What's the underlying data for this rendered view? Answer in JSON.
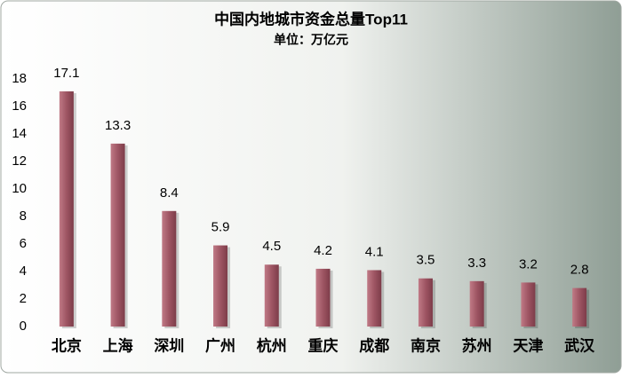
{
  "chart_data": {
    "type": "bar",
    "title": "中国内地城市资金总量Top11",
    "subtitle": "单位：万亿元",
    "categories": [
      "北京",
      "上海",
      "深圳",
      "广州",
      "杭州",
      "重庆",
      "成都",
      "南京",
      "苏州",
      "天津",
      "武汉"
    ],
    "values": [
      17.1,
      13.3,
      8.4,
      5.9,
      4.5,
      4.2,
      4.1,
      3.5,
      3.3,
      3.2,
      2.8
    ],
    "color": "#a05a66",
    "ylim": [
      0,
      18
    ],
    "yticks": [
      0,
      2,
      4,
      6,
      8,
      10,
      12,
      14,
      16,
      18
    ],
    "grid": false
  }
}
